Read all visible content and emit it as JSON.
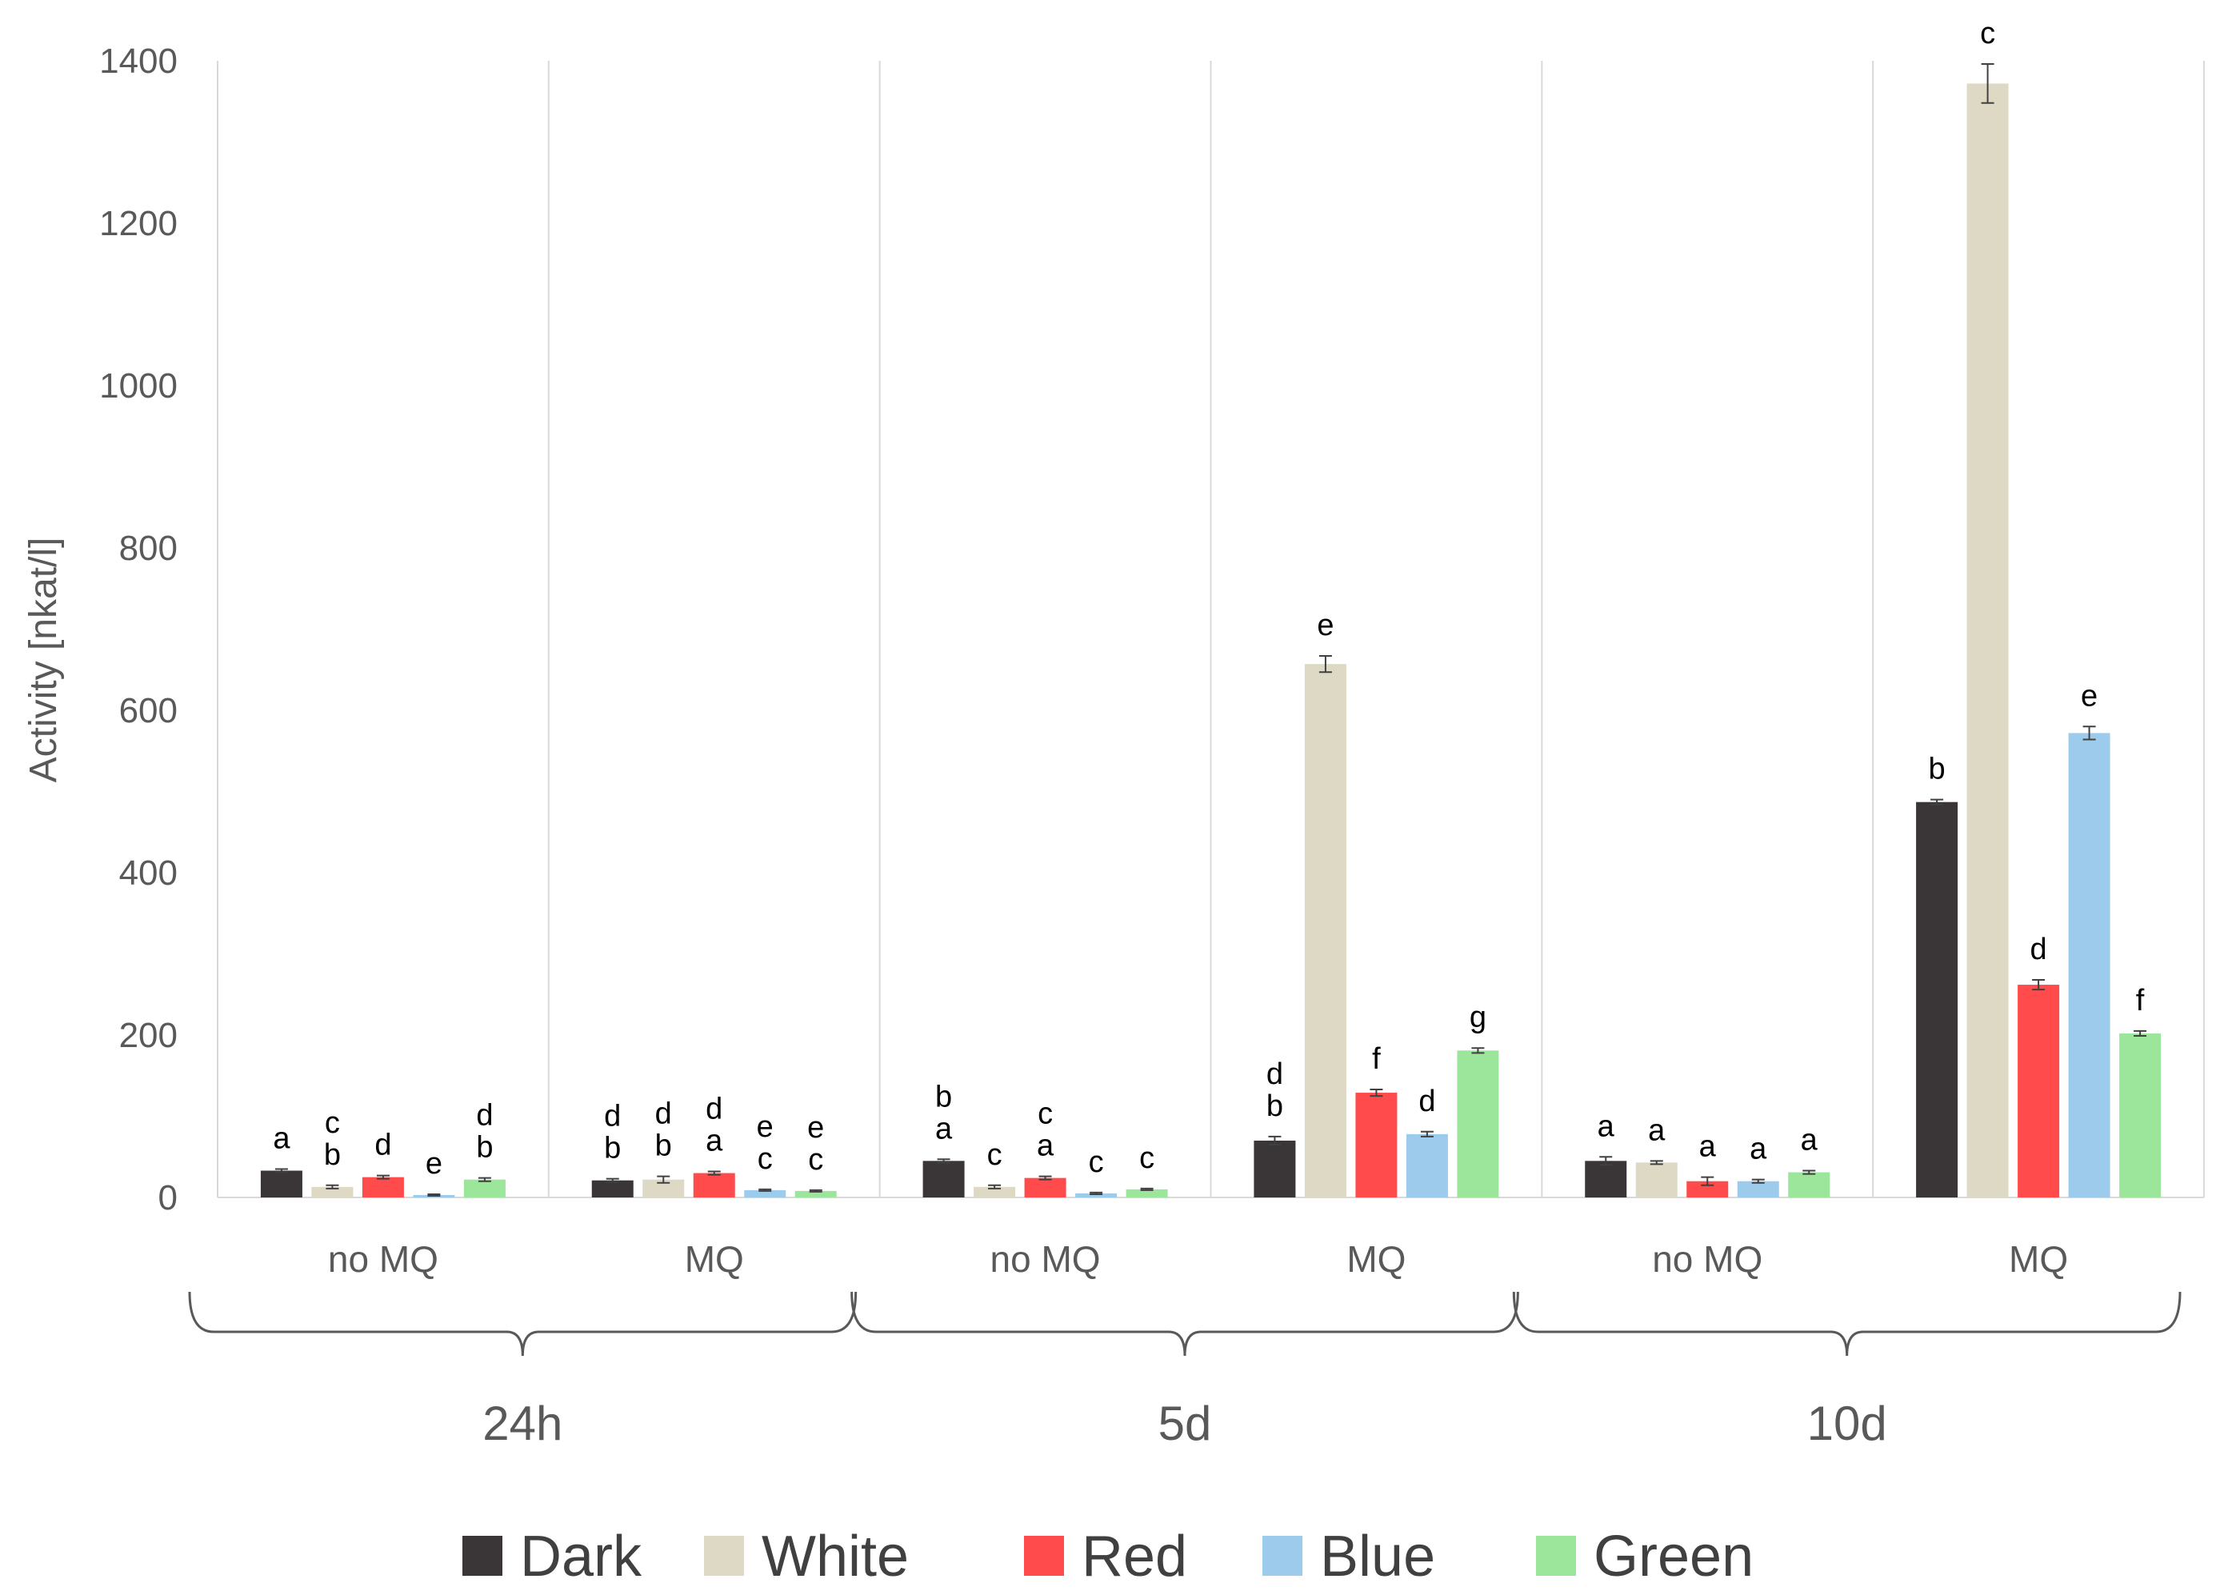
{
  "chart_data": {
    "type": "bar",
    "title": "",
    "ylabel": "Activity [nkat/l]",
    "xlabel": "",
    "ylim": [
      0,
      1400
    ],
    "yticks": [
      0,
      200,
      400,
      600,
      800,
      1000,
      1200,
      1400
    ],
    "grid": "vertical separators between groups",
    "legend_position": "bottom",
    "series_names": [
      "Dark",
      "White",
      "Red",
      "Blue",
      "Green"
    ],
    "colors": [
      "#3a3536",
      "#ddd9c4",
      "#ff4b4b",
      "#9dcbec",
      "#9ce69c"
    ],
    "time_groups": [
      {
        "label": "24h",
        "subgroups": [
          {
            "label": "no MQ",
            "values": [
              33,
              13,
              25,
              3,
              22
            ],
            "errors": [
              2,
              2,
              2,
              1,
              2
            ],
            "letters": [
              "a",
              "c\nb",
              "d",
              "e",
              "d\nb"
            ]
          },
          {
            "label": "MQ",
            "values": [
              21,
              22,
              30,
              9,
              8
            ],
            "errors": [
              2,
              4,
              2,
              1,
              1
            ],
            "letters": [
              "d\nb",
              "d\nb",
              "d\na",
              "e\nc",
              "e\nc"
            ]
          }
        ]
      },
      {
        "label": "5d",
        "subgroups": [
          {
            "label": "no MQ",
            "values": [
              45,
              13,
              24,
              5,
              10
            ],
            "errors": [
              2,
              2,
              2,
              1,
              1
            ],
            "letters": [
              "b\na",
              "c",
              "c\na",
              "c",
              "c"
            ]
          },
          {
            "label": "MQ",
            "values": [
              70,
              657,
              129,
              78,
              181
            ],
            "errors": [
              5,
              10,
              4,
              3,
              3
            ],
            "letters": [
              "d\nb",
              "e",
              "f",
              "d",
              "g"
            ]
          }
        ]
      },
      {
        "label": "10d",
        "subgroups": [
          {
            "label": "no MQ",
            "values": [
              45,
              43,
              20,
              20,
              31
            ],
            "errors": [
              5,
              2,
              5,
              2,
              2
            ],
            "letters": [
              "a",
              "a",
              "a",
              "a",
              "a"
            ]
          },
          {
            "label": "MQ",
            "values": [
              487,
              1372,
              262,
              572,
              202
            ],
            "errors": [
              3,
              24,
              6,
              8,
              3
            ],
            "letters": [
              "b",
              "c",
              "d",
              "e",
              "f"
            ]
          }
        ]
      }
    ]
  }
}
